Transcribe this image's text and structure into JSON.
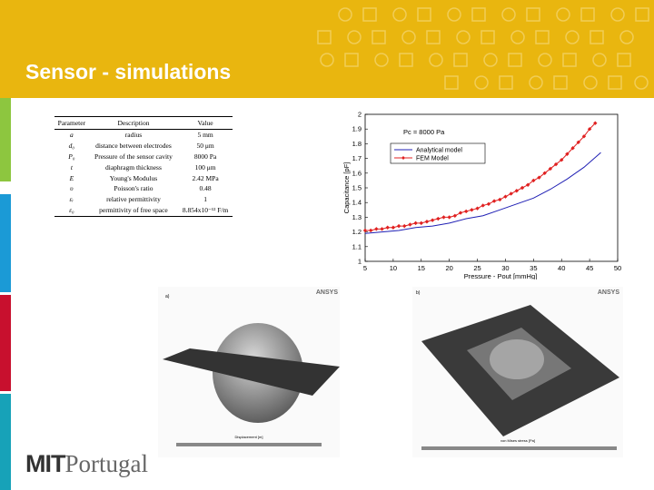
{
  "header": {
    "title": "Sensor - simulations"
  },
  "table": {
    "columns": [
      "Parameter",
      "Description",
      "Value"
    ],
    "rows": [
      [
        "a",
        "radius",
        "5 mm"
      ],
      [
        "d₀",
        "distance between electrodes",
        "50 μm"
      ],
      [
        "P₀",
        "Pressure of the sensor cavity",
        "8000 Pa"
      ],
      [
        "t",
        "diaphragm thickness",
        "100 μm"
      ],
      [
        "E",
        "Young's Modulus",
        "2.42 MPa"
      ],
      [
        "υ",
        "Poisson's ratio",
        "0.48"
      ],
      [
        "εᵣ",
        "relative permittivity",
        "1"
      ],
      [
        "ε₀",
        "permittivity of free space",
        "8.854x10⁻¹² F/m"
      ]
    ]
  },
  "chart_data": {
    "type": "line",
    "annotation": "Pc = 8000 Pa",
    "xlabel": "Pressure - Pout [mmHg]",
    "ylabel": "Capacitance [pF]",
    "xlim": [
      5,
      50
    ],
    "xticks": [
      5,
      10,
      15,
      20,
      25,
      30,
      35,
      40,
      45,
      50
    ],
    "ylim": [
      1,
      2
    ],
    "yticks": [
      1,
      1.1,
      1.2,
      1.3,
      1.4,
      1.5,
      1.6,
      1.7,
      1.8,
      1.9,
      2
    ],
    "legend": "upper left",
    "series": [
      {
        "name": "Analytical model",
        "color": "#1f1fb4",
        "markers": false,
        "x": [
          5,
          8,
          11,
          14,
          17,
          20,
          23,
          26,
          29,
          32,
          35,
          38,
          41,
          44,
          47
        ],
        "values": [
          1.19,
          1.2,
          1.21,
          1.23,
          1.24,
          1.26,
          1.29,
          1.31,
          1.35,
          1.39,
          1.43,
          1.49,
          1.56,
          1.64,
          1.74
        ]
      },
      {
        "name": "FEM Model",
        "color": "#e02020",
        "markers": true,
        "x": [
          5,
          6,
          7,
          8,
          9,
          10,
          11,
          12,
          13,
          14,
          15,
          16,
          17,
          18,
          19,
          20,
          21,
          22,
          23,
          24,
          25,
          26,
          27,
          28,
          29,
          30,
          31,
          32,
          33,
          34,
          35,
          36,
          37,
          38,
          39,
          40,
          41,
          42,
          43,
          44,
          45,
          46
        ],
        "values": [
          1.21,
          1.21,
          1.22,
          1.22,
          1.23,
          1.23,
          1.24,
          1.24,
          1.25,
          1.26,
          1.26,
          1.27,
          1.28,
          1.29,
          1.3,
          1.3,
          1.31,
          1.33,
          1.34,
          1.35,
          1.36,
          1.38,
          1.39,
          1.41,
          1.42,
          1.44,
          1.46,
          1.48,
          1.5,
          1.52,
          1.55,
          1.57,
          1.6,
          1.63,
          1.66,
          1.69,
          1.73,
          1.77,
          1.81,
          1.85,
          1.9,
          1.94
        ]
      }
    ]
  },
  "simulations": [
    {
      "label": "a)",
      "brand": "ANSYS",
      "legend": "Displacement [m]"
    },
    {
      "label": "b)",
      "brand": "ANSYS",
      "legend": "von Mises stress [Pa]"
    }
  ],
  "logo": {
    "bold": "MIT",
    "light": "Portugal"
  }
}
